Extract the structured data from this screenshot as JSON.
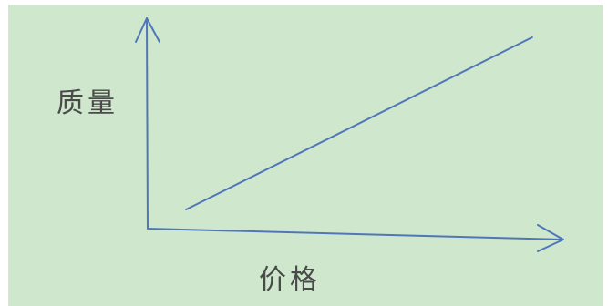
{
  "chart_data": {
    "type": "line",
    "title": "",
    "xlabel": "价格",
    "ylabel": "质量",
    "x": [
      1,
      10
    ],
    "series": [
      {
        "values": [
          1,
          10
        ]
      }
    ],
    "xlim": [
      0,
      11
    ],
    "ylim": [
      0,
      11
    ],
    "grid": false,
    "axis_style": "arrows, no ticks",
    "colors": {
      "background": "#cfe7cd",
      "axis": "#4f77b8",
      "line": "#4f77b8",
      "label": "#4a4a4a"
    }
  }
}
